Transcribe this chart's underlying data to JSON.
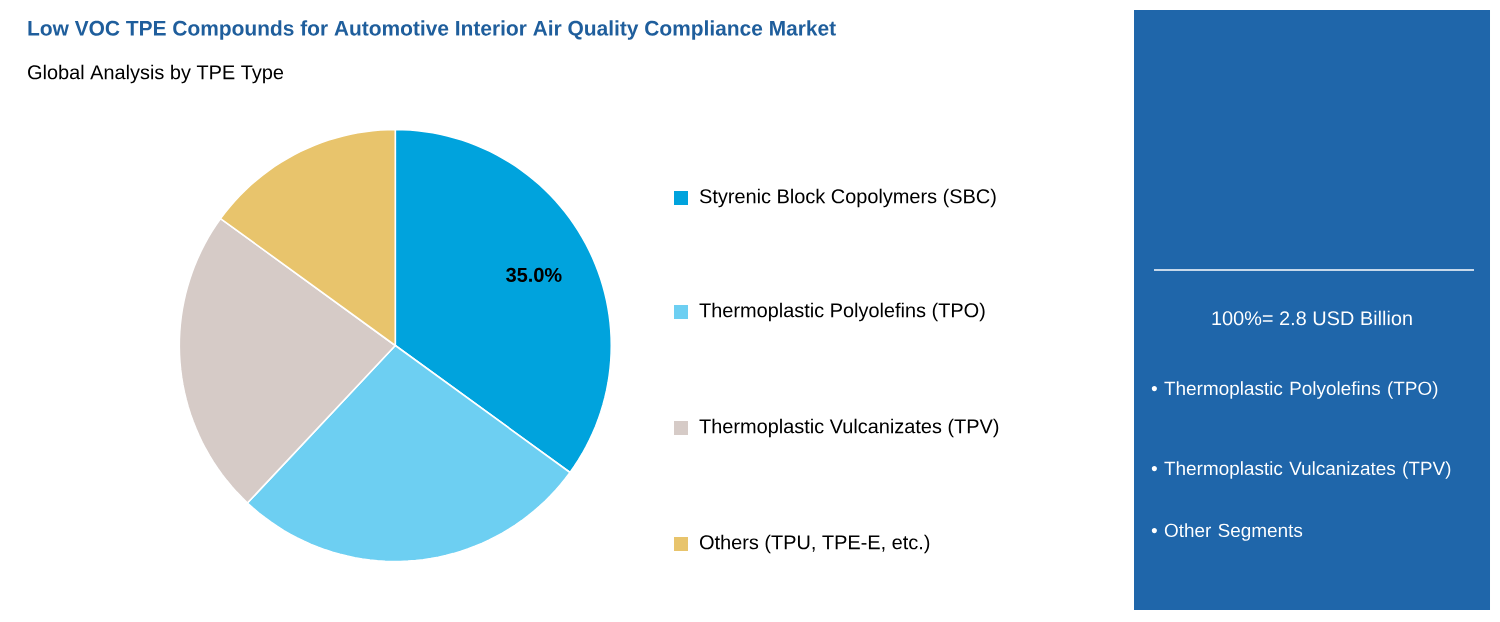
{
  "chart_data": {
    "type": "pie",
    "title": "Low VOC TPE Compounds for Automotive Interior Air Quality Compliance Market",
    "subtitle": "Global Analysis by TPE Type",
    "categories": [
      "Styrenic Block Copolymers (SBC)",
      "Thermoplastic Polyolefins (TPO)",
      "Thermoplastic Vulcanizates (TPV)",
      "Others (TPU, TPE-E, etc.)"
    ],
    "values": [
      35,
      27,
      23,
      15
    ],
    "colors": [
      "#00a3dd",
      "#6dcff2",
      "#d6cbc7",
      "#e8c46c"
    ],
    "value_labels": [
      "35.0%",
      null,
      null,
      null
    ],
    "legend": "right",
    "annotations": [
      "100%= 2.8 USD Billion",
      "• Thermoplastic Polyolefins (TPO)",
      "• Thermoplastic Vulcanizates (TPV)",
      "• Other Segments"
    ]
  }
}
